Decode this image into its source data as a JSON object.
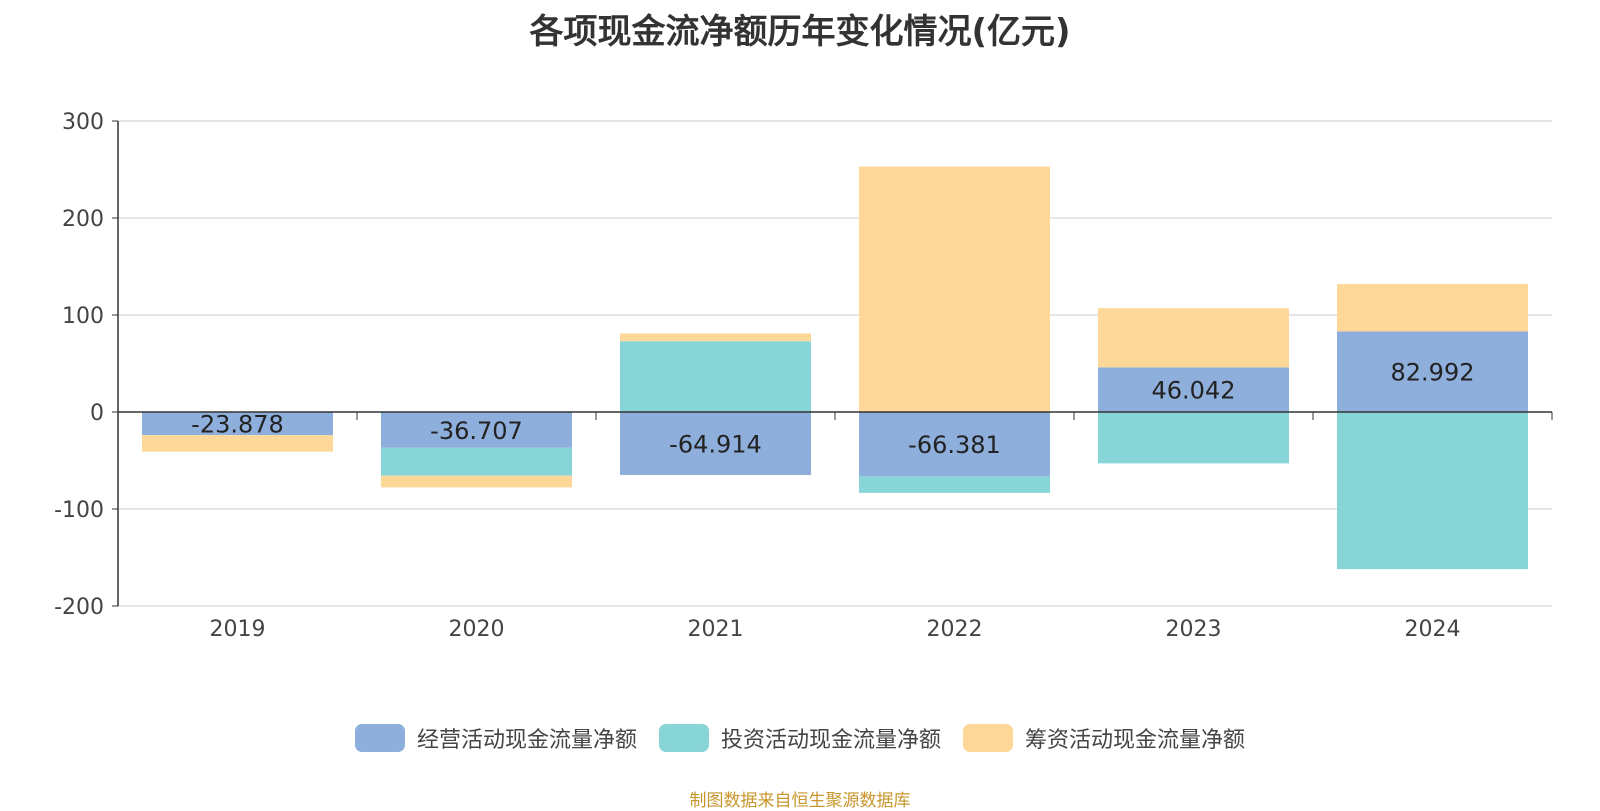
{
  "chart_data": {
    "type": "bar",
    "stacked": true,
    "title": "各项现金流净额历年变化情况(亿元)",
    "categories": [
      "2019",
      "2020",
      "2021",
      "2022",
      "2023",
      "2024"
    ],
    "ylim": [
      -200,
      300
    ],
    "yticks": [
      300,
      200,
      100,
      0,
      -100,
      -200
    ],
    "grid": true,
    "legend_position": "bottom",
    "series": [
      {
        "name": "经营活动现金流量净额",
        "color": "#8eaedb",
        "values": [
          -23.878,
          -36.707,
          -64.914,
          -66.381,
          46.042,
          82.992
        ],
        "data_labels": [
          "-23.878",
          "-36.707",
          "-64.914",
          "-66.381",
          "46.042",
          "82.992"
        ]
      },
      {
        "name": "投资活动现金流量净额",
        "color": "#88d5d8",
        "values": [
          0,
          -29,
          73,
          -17,
          -53,
          -162
        ]
      },
      {
        "name": "筹资活动现金流量净额",
        "color": "#fed899",
        "values": [
          -17,
          -12,
          8,
          253,
          61,
          49
        ]
      }
    ]
  },
  "source": "制图数据来自恒生聚源数据库"
}
